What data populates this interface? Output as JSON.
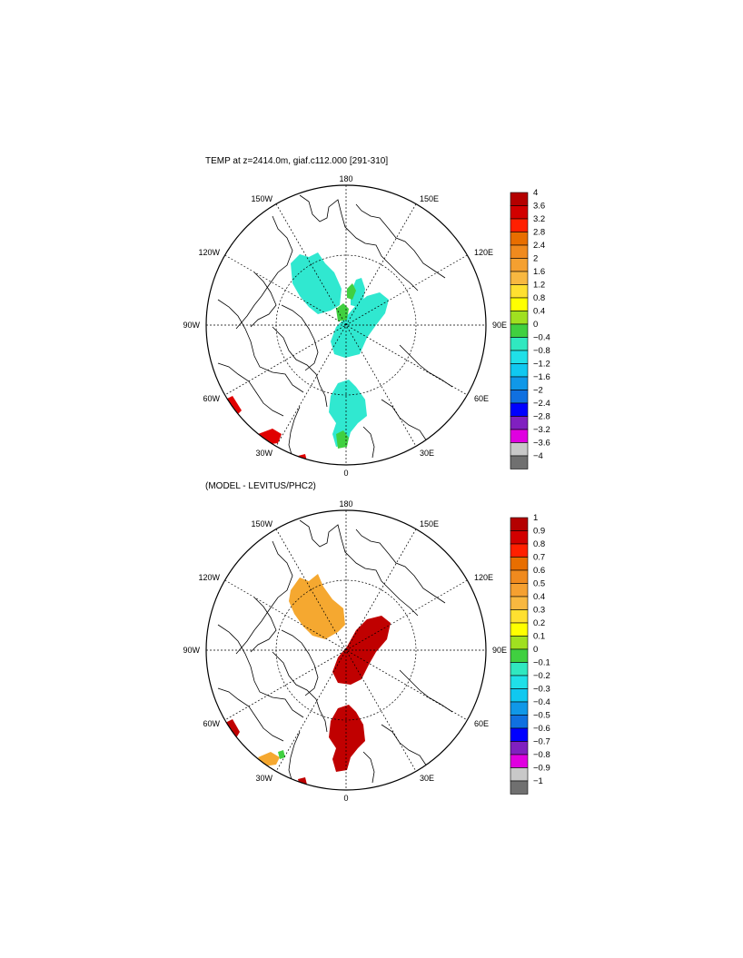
{
  "panels": [
    {
      "title": "TEMP at z=2414.0m, giaf.c112.000 [291-310]",
      "longitude_labels": {
        "deg180": "180",
        "deg150E": "150E",
        "deg120E": "120E",
        "deg90E": "90E",
        "deg60E": "60E",
        "deg30E": "30E",
        "deg0": "0",
        "deg30W": "30W",
        "deg60W": "60W",
        "deg90W": "90W",
        "deg120W": "120W",
        "deg150W": "150W"
      },
      "colorbar": {
        "labels": [
          "4",
          "3.6",
          "3.2",
          "2.8",
          "2.4",
          "2",
          "1.6",
          "1.2",
          "0.8",
          "0.4",
          "0",
          "−0.4",
          "−0.8",
          "−1.2",
          "−1.6",
          "−2",
          "−2.4",
          "−2.8",
          "−3.2",
          "−3.6",
          "−4"
        ],
        "colors": [
          "#b40000",
          "#d20000",
          "#ff2000",
          "#e86e00",
          "#f08a1e",
          "#f5a030",
          "#f8b840",
          "#ffe030",
          "#ffff00",
          "#a0e020",
          "#40d040",
          "#30e8c0",
          "#20e0e8",
          "#10c8f0",
          "#1098e8",
          "#1070e0",
          "#0000ff",
          "#8020c0",
          "#e000e0",
          "#c8c8c8",
          "#707070"
        ]
      }
    },
    {
      "title": "(MODEL - LEVITUS/PHC2)",
      "longitude_labels": {
        "deg180": "180",
        "deg150E": "150E",
        "deg120E": "120E",
        "deg90E": "90E",
        "deg60E": "60E",
        "deg30E": "30E",
        "deg0": "0",
        "deg30W": "30W",
        "deg60W": "60W",
        "deg90W": "90W",
        "deg120W": "120W",
        "deg150W": "150W"
      },
      "colorbar": {
        "labels": [
          "1",
          "0.9",
          "0.8",
          "0.7",
          "0.6",
          "0.5",
          "0.4",
          "0.3",
          "0.2",
          "0.1",
          "0",
          "−0.1",
          "−0.2",
          "−0.3",
          "−0.4",
          "−0.5",
          "−0.6",
          "−0.7",
          "−0.8",
          "−0.9",
          "−1"
        ],
        "colors": [
          "#b40000",
          "#d20000",
          "#ff2000",
          "#e86e00",
          "#f08a1e",
          "#f5a030",
          "#f8b840",
          "#ffe030",
          "#ffff00",
          "#a0e020",
          "#40d040",
          "#30e8c0",
          "#20e0e8",
          "#10c8f0",
          "#1098e8",
          "#1070e0",
          "#0000ff",
          "#8020c0",
          "#e000e0",
          "#c8c8c8",
          "#707070"
        ]
      }
    }
  ],
  "colors": {
    "cyan_field": "#30e8d0",
    "green_field": "#40d040",
    "red_field": "#e00000",
    "darkred_field": "#c00000",
    "orange_field": "#f5a830",
    "coastline": "#000000"
  }
}
